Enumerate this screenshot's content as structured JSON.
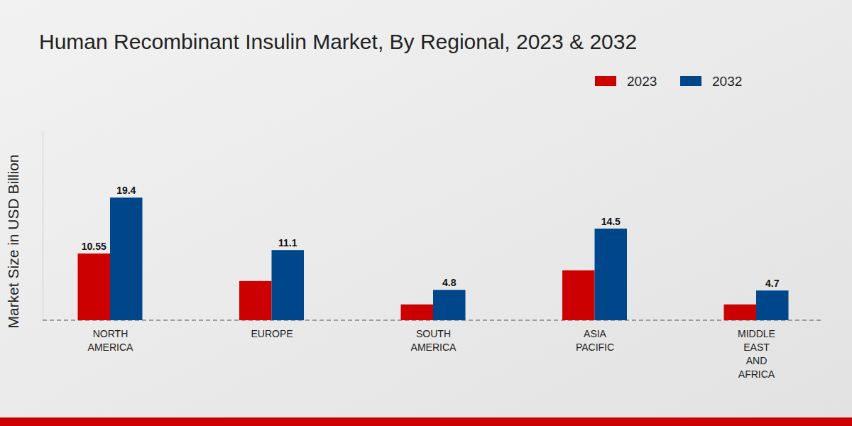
{
  "chart_data": {
    "type": "bar",
    "title": "Human Recombinant Insulin Market, By Regional, 2023 & 2032",
    "y_label": "Market Size in USD Billion",
    "categories": [
      "NORTH AMERICA",
      "EUROPE",
      "SOUTH AMERICA",
      "ASIA PACIFIC",
      "MIDDLE EAST AND AFRICA"
    ],
    "series": [
      {
        "name": "2023",
        "color": "#cc0000",
        "values": [
          10.55,
          6.2,
          2.5,
          7.9,
          2.5
        ],
        "value_labels": [
          "10.55",
          null,
          null,
          null,
          null
        ]
      },
      {
        "name": "2032",
        "color": "#00468b",
        "values": [
          19.4,
          11.1,
          4.8,
          14.5,
          4.7
        ]
      }
    ],
    "ylim": [
      0,
      30
    ],
    "yticks": [
      0
    ],
    "grid": true,
    "legend": "top-right",
    "data_labels": true,
    "tick_labels": "x"
  }
}
